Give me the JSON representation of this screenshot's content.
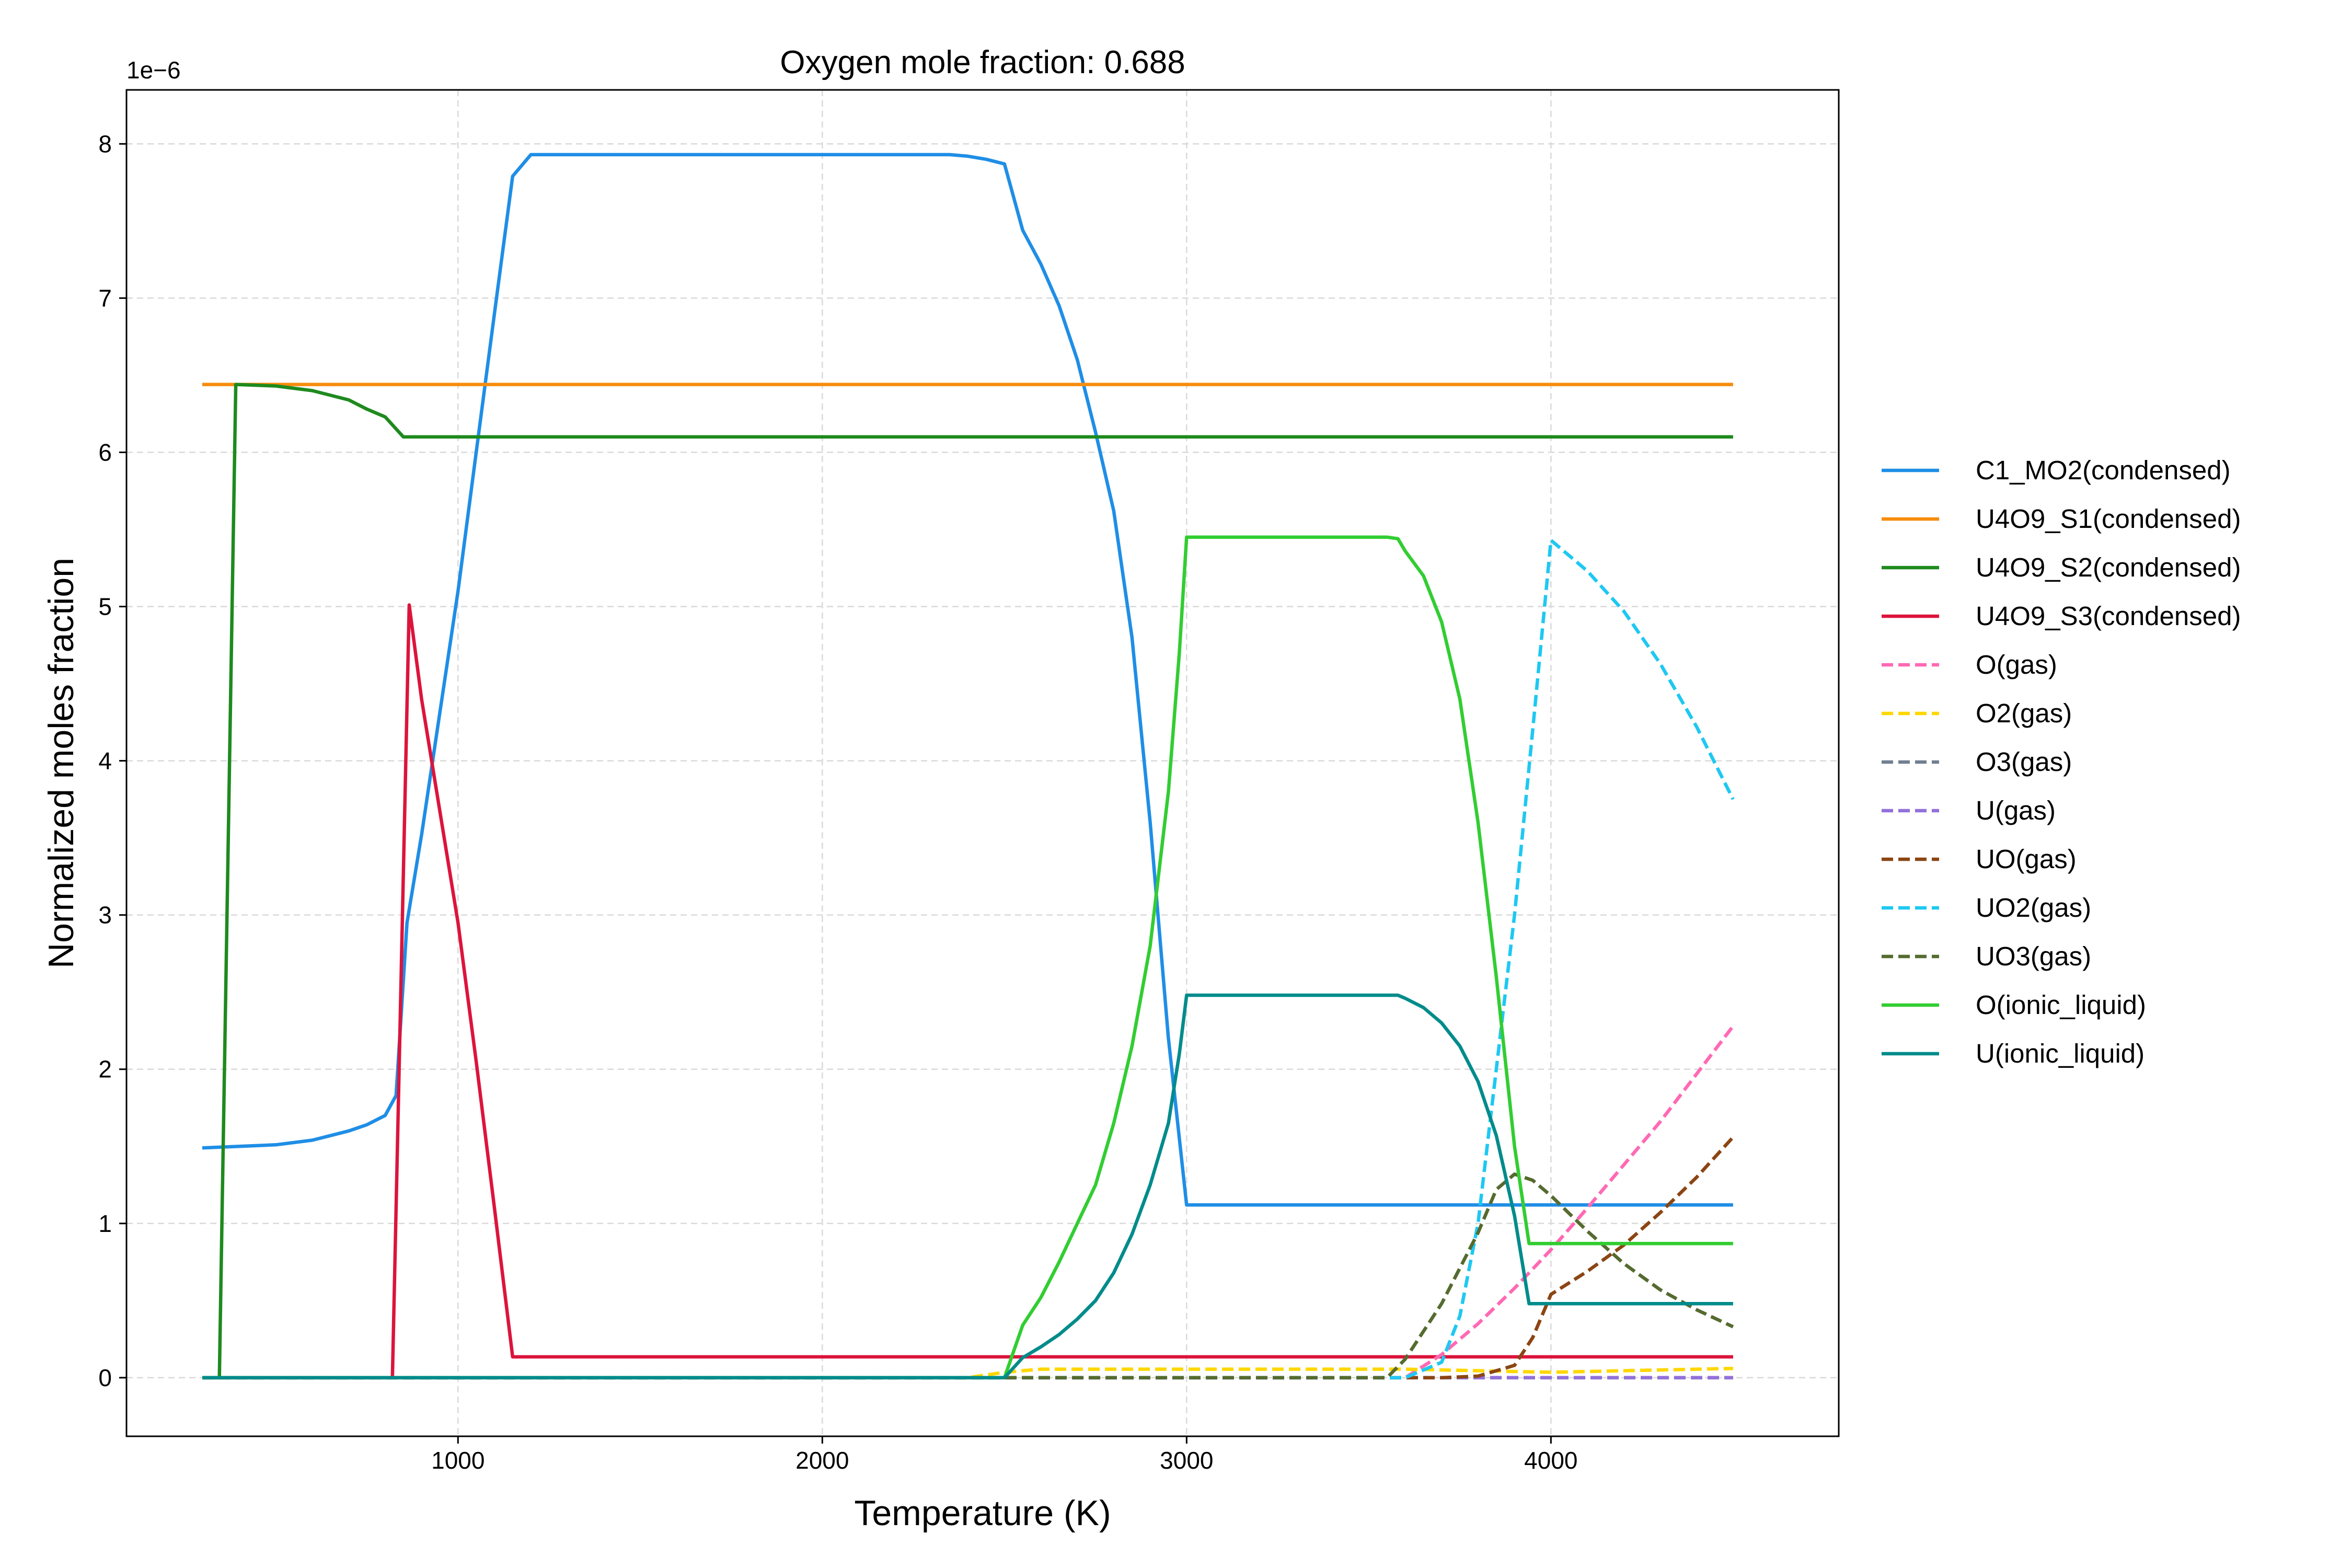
{
  "chart_data": {
    "type": "line",
    "title": "Oxygen mole fraction: 0.688",
    "xlabel": "Temperature (K)",
    "ylabel": "Normalized moles fraction",
    "y_offset_label": "1e−6",
    "xlim": [
      90,
      4790
    ],
    "ylim": [
      -3.8e-07,
      8.35e-06
    ],
    "xticks": [
      1000,
      2000,
      3000,
      4000
    ],
    "xtick_labels": [
      "1000",
      "2000",
      "3000",
      "4000"
    ],
    "yticks": [
      0,
      1e-06,
      2e-06,
      3e-06,
      4e-06,
      5e-06,
      6e-06,
      7e-06,
      8e-06
    ],
    "ytick_labels": [
      "0",
      "1",
      "2",
      "3",
      "4",
      "5",
      "6",
      "7",
      "8"
    ],
    "grid": true,
    "legend_position": "right outside",
    "series": [
      {
        "name": "C1_MO2(condensed)",
        "color": "#1f8ee6",
        "dash": "solid",
        "x": [
          298,
          400,
          500,
          600,
          700,
          750,
          800,
          830,
          860,
          900,
          1000,
          1050,
          1100,
          1150,
          1200,
          1300,
          2000,
          2350,
          2400,
          2450,
          2500,
          2550,
          2600,
          2650,
          2700,
          2750,
          2800,
          2850,
          2900,
          2950,
          3000,
          3500,
          4000,
          4500
        ],
        "y": [
          1.49e-06,
          1.5e-06,
          1.51e-06,
          1.54e-06,
          1.6e-06,
          1.64e-06,
          1.7e-06,
          1.83e-06,
          2.95e-06,
          3.52e-06,
          5.1e-06,
          6e-06,
          6.9e-06,
          7.79e-06,
          7.93e-06,
          7.93e-06,
          7.93e-06,
          7.93e-06,
          7.92e-06,
          7.9e-06,
          7.87e-06,
          7.44e-06,
          7.22e-06,
          6.95e-06,
          6.6e-06,
          6.13e-06,
          5.62e-06,
          4.8e-06,
          3.6e-06,
          2.2e-06,
          1.12e-06,
          1.12e-06,
          1.12e-06,
          1.12e-06
        ]
      },
      {
        "name": "U4O9_S1(condensed)",
        "color": "#f78c0d",
        "dash": "solid",
        "x": [
          298,
          4500
        ],
        "y": [
          6.44e-06,
          6.44e-06
        ]
      },
      {
        "name": "U4O9_S2(condensed)",
        "color": "#1e8a1e",
        "dash": "solid",
        "x": [
          298,
          345,
          390,
          500,
          600,
          700,
          750,
          800,
          850,
          1000,
          4500
        ],
        "y": [
          0,
          0,
          6.44e-06,
          6.43e-06,
          6.4e-06,
          6.34e-06,
          6.28e-06,
          6.23e-06,
          6.1e-06,
          6.1e-06,
          6.1e-06
        ],
        "note_x_scale": "K"
      },
      {
        "name": "U4O9_S3(condensed)",
        "color": "#dc143c",
        "dash": "solid",
        "x": [
          298,
          820,
          866,
          900,
          1000,
          1050,
          1100,
          1150,
          1200,
          4500
        ],
        "y": [
          0,
          0,
          5.01e-06,
          4.4e-06,
          2.95e-06,
          2.05e-06,
          1.1e-06,
          1.35e-07,
          1.35e-07,
          1.35e-07
        ]
      },
      {
        "name": "O(gas)",
        "color": "#ff69b4",
        "dash": "dashed",
        "x": [
          298,
          3600,
          3700,
          3800,
          3900,
          4000,
          4100,
          4200,
          4300,
          4400,
          4500
        ],
        "y": [
          0,
          0,
          1.5e-07,
          3.5e-07,
          5.8e-07,
          8.3e-07,
          1.1e-06,
          1.38e-06,
          1.66e-06,
          1.97e-06,
          2.28e-06
        ]
      },
      {
        "name": "O2(gas)",
        "color": "#ffd700",
        "dash": "dashed",
        "x": [
          298,
          2400,
          2500,
          2600,
          3600,
          4000,
          4500
        ],
        "y": [
          0,
          0,
          3.5e-08,
          5.5e-08,
          5.5e-08,
          3.5e-08,
          6e-08
        ]
      },
      {
        "name": "O3(gas)",
        "color": "#708090",
        "dash": "dashed",
        "x": [
          298,
          4500
        ],
        "y": [
          0,
          0
        ]
      },
      {
        "name": "U(gas)",
        "color": "#9370db",
        "dash": "dashed",
        "x": [
          298,
          4500
        ],
        "y": [
          0,
          0
        ]
      },
      {
        "name": "UO(gas)",
        "color": "#8b4513",
        "dash": "dashed",
        "x": [
          298,
          3700,
          3800,
          3900,
          3950,
          4000,
          4100,
          4200,
          4300,
          4400,
          4500
        ],
        "y": [
          0,
          0,
          1e-08,
          8e-08,
          2.6e-07,
          5.4e-07,
          6.9e-07,
          8.6e-07,
          1.07e-06,
          1.3e-06,
          1.56e-06
        ]
      },
      {
        "name": "UO2(gas)",
        "color": "#1ec8f2",
        "dash": "dashed",
        "x": [
          298,
          3600,
          3700,
          3750,
          3800,
          3850,
          3900,
          3950,
          4000,
          4100,
          4200,
          4300,
          4400,
          4500
        ],
        "y": [
          0,
          0,
          1e-07,
          4e-07,
          1e-06,
          2e-06,
          3e-06,
          4.2e-06,
          5.43e-06,
          5.23e-06,
          4.97e-06,
          4.63e-06,
          4.22e-06,
          3.75e-06
        ]
      },
      {
        "name": "UO3(gas)",
        "color": "#556b2f",
        "dash": "dashed",
        "x": [
          298,
          3550,
          3600,
          3700,
          3800,
          3850,
          3900,
          3950,
          4000,
          4100,
          4200,
          4300,
          4400,
          4500
        ],
        "y": [
          0,
          0,
          1.2e-07,
          4.8e-07,
          9.4e-07,
          1.22e-06,
          1.32e-06,
          1.28e-06,
          1.18e-06,
          9.5e-07,
          7.4e-07,
          5.7e-07,
          4.4e-07,
          3.3e-07
        ]
      },
      {
        "name": "O(ionic_liquid)",
        "color": "#32cd32",
        "dash": "solid",
        "x": [
          298,
          2500,
          2550,
          2600,
          2650,
          2700,
          2750,
          2800,
          2850,
          2900,
          2950,
          2980,
          3000,
          3500,
          3550,
          3580,
          3600,
          3650,
          3700,
          3750,
          3800,
          3850,
          3900,
          3940,
          4000,
          4500
        ],
        "y": [
          0,
          0,
          3.4e-07,
          5.2e-07,
          7.5e-07,
          1e-06,
          1.25e-06,
          1.65e-06,
          2.15e-06,
          2.8e-06,
          3.8e-06,
          4.7e-06,
          5.45e-06,
          5.45e-06,
          5.45e-06,
          5.44e-06,
          5.36e-06,
          5.2e-06,
          4.9e-06,
          4.4e-06,
          3.6e-06,
          2.6e-06,
          1.5e-06,
          8.7e-07,
          8.7e-07,
          8.7e-07
        ]
      },
      {
        "name": "U(ionic_liquid)",
        "color": "#008b8b",
        "dash": "solid",
        "x": [
          298,
          2500,
          2550,
          2600,
          2650,
          2700,
          2750,
          2800,
          2850,
          2900,
          2950,
          2980,
          3000,
          3500,
          3550,
          3580,
          3600,
          3650,
          3700,
          3750,
          3800,
          3850,
          3900,
          3940,
          4000,
          4500
        ],
        "y": [
          0,
          0,
          1.3e-07,
          2e-07,
          2.8e-07,
          3.8e-07,
          5e-07,
          6.8e-07,
          9.3e-07,
          1.25e-06,
          1.65e-06,
          2.1e-06,
          2.48e-06,
          2.48e-06,
          2.48e-06,
          2.48e-06,
          2.46e-06,
          2.4e-06,
          2.3e-06,
          2.15e-06,
          1.92e-06,
          1.57e-06,
          1.05e-06,
          4.8e-07,
          4.8e-07,
          4.8e-07
        ]
      }
    ]
  }
}
